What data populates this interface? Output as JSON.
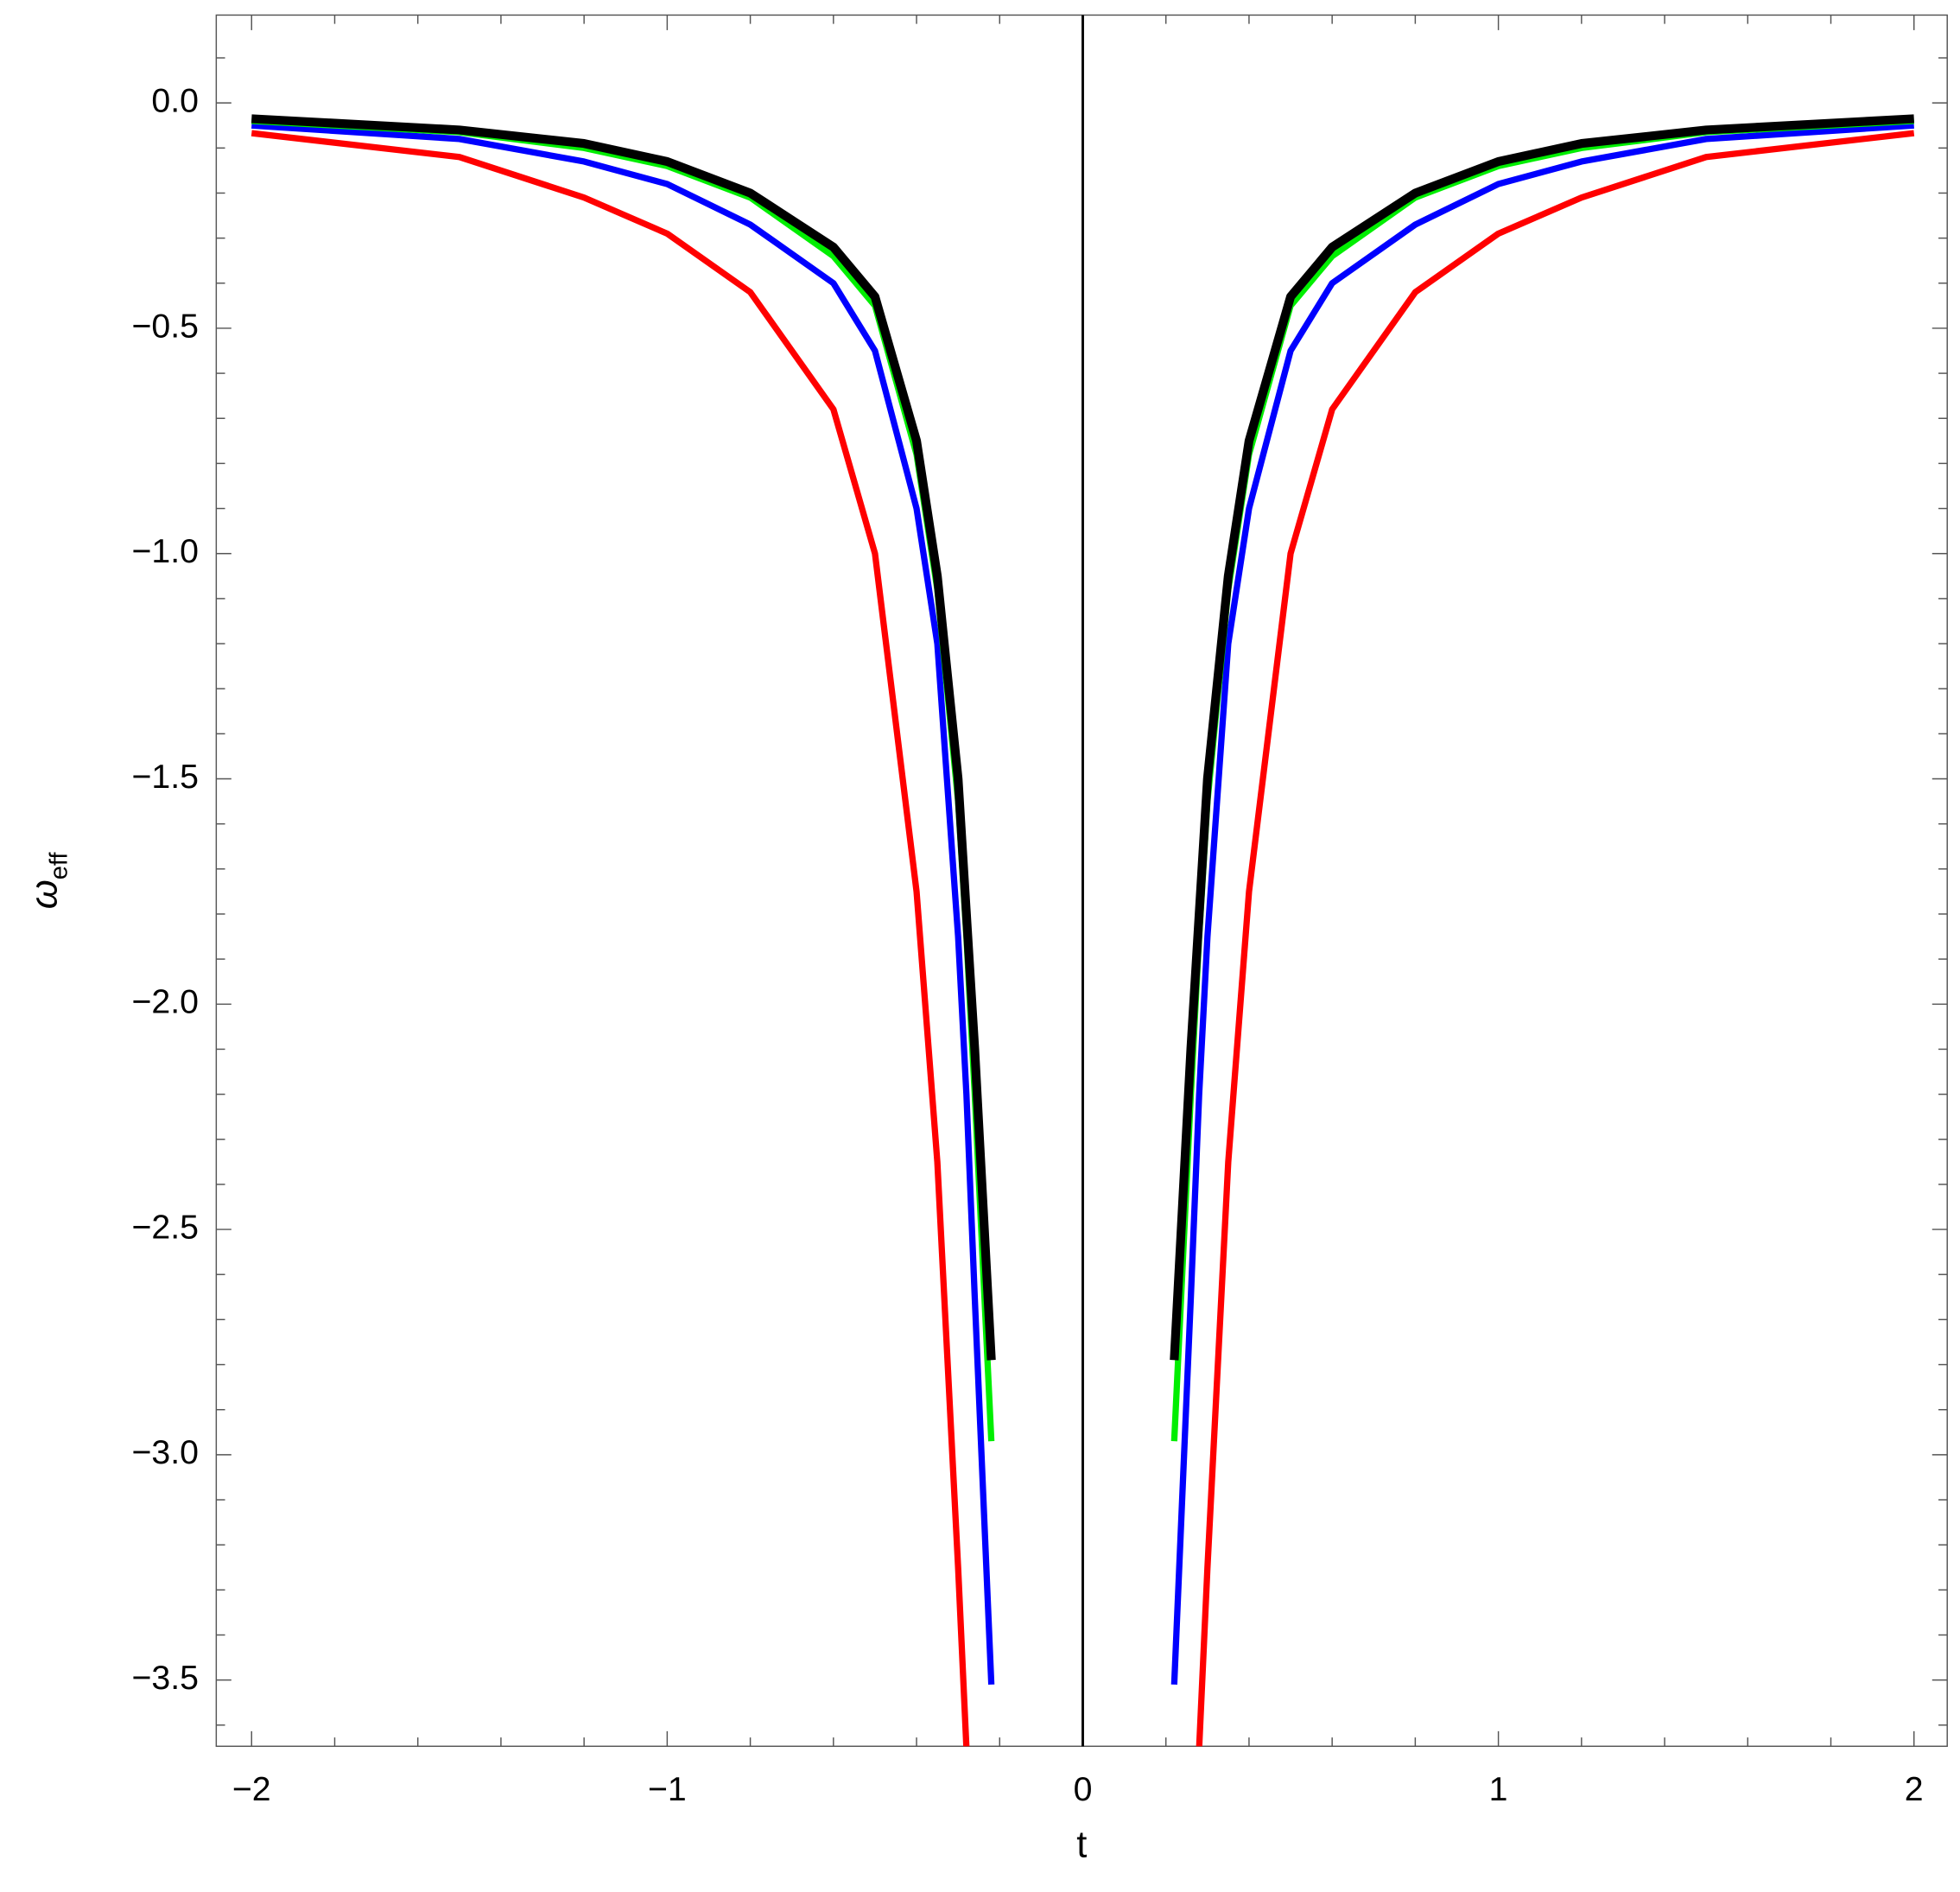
{
  "chart_data": {
    "type": "line",
    "xlabel": "t",
    "ylabel": {
      "symbol": "ω",
      "subscript": "eff"
    },
    "x": [
      -2,
      -1.5,
      -1.2,
      -1,
      -0.8,
      -0.6,
      -0.5,
      -0.4,
      -0.35,
      -0.3,
      -0.28,
      -0.26,
      -0.22,
      0,
      0.22,
      0.26,
      0.28,
      0.3,
      0.35,
      0.4,
      0.5,
      0.6,
      0.8,
      1,
      1.2,
      1.5,
      2
    ],
    "series": [
      {
        "color": "#ff0000",
        "width": 5,
        "values": [
          -0.067,
          -0.12,
          -0.21,
          -0.29,
          -0.42,
          -0.68,
          -1.0,
          -1.75,
          -2.35,
          -3.25,
          -3.65,
          null,
          null,
          null,
          null,
          null,
          -3.65,
          -3.25,
          -2.35,
          -1.75,
          -1.0,
          -0.68,
          -0.42,
          -0.29,
          -0.21,
          -0.12,
          -0.067
        ]
      },
      {
        "color": "#0000ff",
        "width": 5,
        "values": [
          -0.05,
          -0.08,
          -0.13,
          -0.18,
          -0.27,
          -0.4,
          -0.55,
          -0.9,
          -1.2,
          -1.85,
          -2.2,
          -2.65,
          -3.51,
          null,
          -3.51,
          -2.65,
          -2.2,
          -1.85,
          -1.2,
          -0.9,
          -0.55,
          -0.4,
          -0.27,
          -0.18,
          -0.13,
          -0.08,
          -0.05
        ]
      },
      {
        "color": "#00ee00",
        "width": 5,
        "values": [
          -0.04,
          -0.065,
          -0.1,
          -0.14,
          -0.21,
          -0.34,
          -0.45,
          -0.78,
          -1.08,
          -1.55,
          -1.85,
          -2.2,
          -2.97,
          null,
          -2.97,
          -2.2,
          -1.85,
          -1.55,
          -1.08,
          -0.78,
          -0.45,
          -0.34,
          -0.21,
          -0.14,
          -0.1,
          -0.065,
          -0.04
        ]
      },
      {
        "color": "#000000",
        "width": 7,
        "values": [
          -0.035,
          -0.06,
          -0.09,
          -0.13,
          -0.2,
          -0.32,
          -0.43,
          -0.75,
          -1.05,
          -1.5,
          -1.8,
          -2.1,
          -2.79,
          null,
          -2.79,
          -2.1,
          -1.8,
          -1.5,
          -1.05,
          -0.75,
          -0.43,
          -0.32,
          -0.2,
          -0.13,
          -0.09,
          -0.06,
          -0.035
        ]
      }
    ],
    "xlim": [
      -2.085,
      2.08
    ],
    "ylim": [
      -3.647,
      0.195
    ],
    "xticks": [
      {
        "value": -2,
        "label": "−2"
      },
      {
        "value": -1,
        "label": "−1"
      },
      0,
      1,
      2
    ],
    "xminorticks": [
      -1.8,
      -1.6,
      -1.4,
      -1.2,
      -0.8,
      -0.6,
      -0.4,
      -0.2,
      0.2,
      0.4,
      0.6,
      0.8,
      1.2,
      1.4,
      1.6,
      1.8
    ],
    "yticks": [
      {
        "value": 0,
        "label": "0.0"
      },
      {
        "value": -0.5,
        "label": "−0.5"
      },
      {
        "value": -1,
        "label": "−1.0"
      },
      {
        "value": -1.5,
        "label": "−1.5"
      },
      {
        "value": -2,
        "label": "−2.0"
      },
      {
        "value": -2.5,
        "label": "−2.5"
      },
      {
        "value": -3,
        "label": "−3.0"
      },
      {
        "value": -3.5,
        "label": "−3.5"
      }
    ],
    "yminorticks": [
      0.1,
      -0.1,
      -0.2,
      -0.3,
      -0.4,
      -0.6,
      -0.7,
      -0.8,
      -0.9,
      -1.1,
      -1.2,
      -1.3,
      -1.4,
      -1.6,
      -1.7,
      -1.8,
      -1.9,
      -2.1,
      -2.2,
      -2.3,
      -2.4,
      -2.6,
      -2.7,
      -2.8,
      -2.9,
      -3.1,
      -3.2,
      -3.3,
      -3.4,
      -3.6
    ]
  }
}
